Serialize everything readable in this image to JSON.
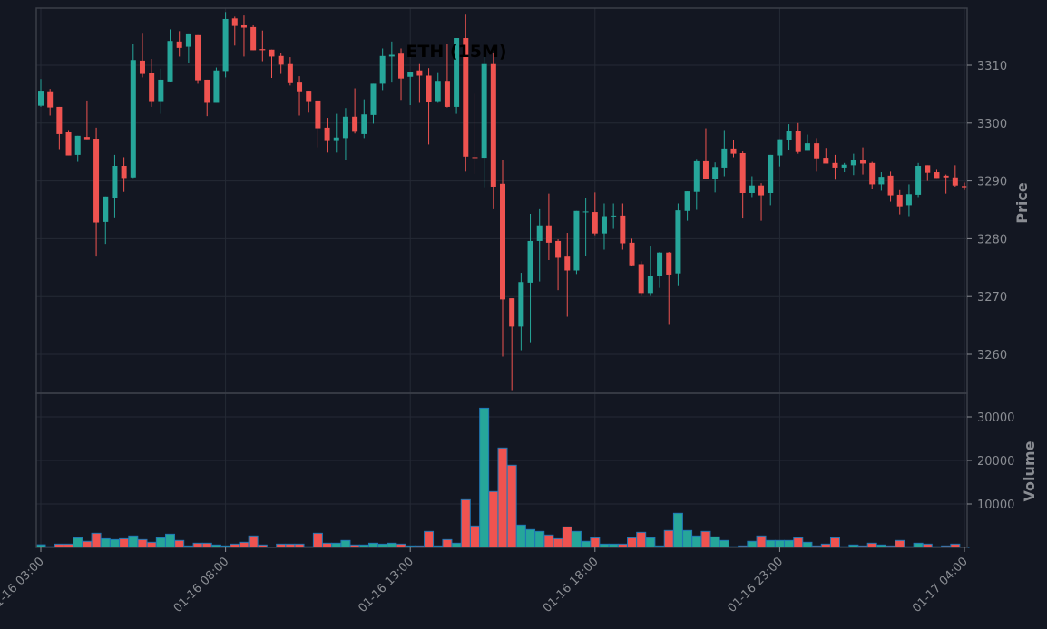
{
  "chart_data": {
    "type": "candlestick",
    "title": "ETH (15M)",
    "interval": "15M",
    "colors": {
      "up": "#26a69a",
      "down": "#ef5350",
      "volume_edge": "#1f77b4",
      "background": "#131722",
      "grid": "#252a35",
      "text": "#8a8d93"
    },
    "price_panel": {
      "ylabel": "Price",
      "ylim": [
        3252,
        3320
      ],
      "yticks": [
        3260,
        3270,
        3280,
        3290,
        3300,
        3310
      ]
    },
    "volume_panel": {
      "ylabel": "Volume",
      "ylim": [
        0,
        35000
      ],
      "yticks": [
        10000,
        20000,
        30000
      ]
    },
    "xticks": [
      {
        "index": 0,
        "label": "01-16 03:00"
      },
      {
        "index": 20,
        "label": "01-16 08:00"
      },
      {
        "index": 40,
        "label": "01-16 13:00"
      },
      {
        "index": 60,
        "label": "01-16 18:00"
      },
      {
        "index": 80,
        "label": "01-16 23:00"
      },
      {
        "index": 100,
        "label": "01-17 04:00"
      }
    ],
    "ohlc": [
      [
        3303.0,
        3307.6,
        3302.8,
        3305.6
      ],
      [
        3305.5,
        3305.9,
        3301.3,
        3302.7
      ],
      [
        3302.8,
        3302.8,
        3295.5,
        3298.1
      ],
      [
        3298.4,
        3298.8,
        3294.4,
        3294.4
      ],
      [
        3294.5,
        3297.8,
        3293.3,
        3297.8
      ],
      [
        3297.6,
        3303.9,
        3297.2,
        3297.2
      ],
      [
        3297.3,
        3299.2,
        3276.9,
        3282.8
      ],
      [
        3282.9,
        3287.3,
        3279.1,
        3287.3
      ],
      [
        3287.0,
        3294.5,
        3283.7,
        3292.6
      ],
      [
        3292.6,
        3294.1,
        3288.1,
        3290.5
      ],
      [
        3290.6,
        3313.6,
        3290.5,
        3310.9
      ],
      [
        3310.8,
        3315.6,
        3307.9,
        3308.5
      ],
      [
        3308.6,
        3311.1,
        3302.8,
        3303.8
      ],
      [
        3303.8,
        3309.4,
        3301.6,
        3307.5
      ],
      [
        3307.2,
        3316.2,
        3307.1,
        3314.2
      ],
      [
        3314.1,
        3315.9,
        3311.5,
        3313.0
      ],
      [
        3313.2,
        3315.5,
        3310.4,
        3315.5
      ],
      [
        3315.2,
        3315.2,
        3306.8,
        3307.4
      ],
      [
        3307.5,
        3307.5,
        3301.2,
        3303.5
      ],
      [
        3303.5,
        3309.6,
        3303.5,
        3309.1
      ],
      [
        3309.0,
        3319.2,
        3307.9,
        3318.0
      ],
      [
        3318.1,
        3318.4,
        3313.4,
        3316.8
      ],
      [
        3316.9,
        3318.6,
        3311.5,
        3316.5
      ],
      [
        3316.6,
        3316.9,
        3312.6,
        3312.6
      ],
      [
        3312.8,
        3316.0,
        3310.7,
        3312.6
      ],
      [
        3312.7,
        3312.7,
        3307.8,
        3311.5
      ],
      [
        3311.6,
        3312.1,
        3308.5,
        3310.1
      ],
      [
        3310.2,
        3311.4,
        3306.5,
        3306.9
      ],
      [
        3307.0,
        3308.1,
        3301.3,
        3305.5
      ],
      [
        3305.6,
        3305.6,
        3301.8,
        3303.8
      ],
      [
        3303.9,
        3303.9,
        3295.8,
        3299.1
      ],
      [
        3299.2,
        3300.9,
        3294.9,
        3296.9
      ],
      [
        3296.9,
        3301.6,
        3294.9,
        3297.5
      ],
      [
        3297.4,
        3302.6,
        3293.6,
        3301.1
      ],
      [
        3301.1,
        3306.0,
        3298.2,
        3298.5
      ],
      [
        3298.1,
        3304.1,
        3297.4,
        3301.5
      ],
      [
        3301.4,
        3306.8,
        3299.9,
        3306.8
      ],
      [
        3306.8,
        3312.9,
        3305.7,
        3311.6
      ],
      [
        3311.5,
        3314.1,
        3307.0,
        3311.8
      ],
      [
        3312.0,
        3312.9,
        3304.0,
        3307.7
      ],
      [
        3308.0,
        3308.9,
        3303.1,
        3308.9
      ],
      [
        3309.1,
        3310.2,
        3303.5,
        3308.2
      ],
      [
        3308.2,
        3309.5,
        3296.3,
        3303.6
      ],
      [
        3303.8,
        3308.8,
        3303.5,
        3307.3
      ],
      [
        3307.3,
        3313.7,
        3302.7,
        3302.8
      ],
      [
        3302.8,
        3314.7,
        3301.6,
        3314.7
      ],
      [
        3314.7,
        3318.9,
        3291.6,
        3294.2
      ],
      [
        3294.1,
        3305.1,
        3291.2,
        3294.0
      ],
      [
        3294.0,
        3311.9,
        3288.9,
        3310.2
      ],
      [
        3310.2,
        3312.1,
        3285.1,
        3289.0
      ],
      [
        3289.5,
        3293.6,
        3259.6,
        3269.5
      ],
      [
        3269.7,
        3269.7,
        3253.8,
        3264.8
      ],
      [
        3264.8,
        3274.1,
        3260.7,
        3272.5
      ],
      [
        3272.4,
        3284.3,
        3262.1,
        3279.6
      ],
      [
        3279.6,
        3285.1,
        3272.6,
        3282.3
      ],
      [
        3282.3,
        3287.8,
        3276.3,
        3279.3
      ],
      [
        3279.6,
        3279.9,
        3271.1,
        3276.7
      ],
      [
        3276.9,
        3281.0,
        3266.5,
        3274.5
      ],
      [
        3274.5,
        3284.8,
        3273.9,
        3284.8
      ],
      [
        3284.6,
        3287.0,
        3277.0,
        3284.7
      ],
      [
        3284.6,
        3288.0,
        3280.6,
        3280.9
      ],
      [
        3280.9,
        3286.1,
        3278.1,
        3283.9
      ],
      [
        3283.9,
        3286.1,
        3281.7,
        3284.0
      ],
      [
        3284.0,
        3286.1,
        3278.1,
        3279.2
      ],
      [
        3279.3,
        3280.0,
        3275.2,
        3275.4
      ],
      [
        3275.6,
        3276.1,
        3270.1,
        3270.6
      ],
      [
        3270.6,
        3278.8,
        3270.1,
        3273.6
      ],
      [
        3273.5,
        3277.7,
        3271.5,
        3277.6
      ],
      [
        3277.6,
        3277.7,
        3265.1,
        3273.8
      ],
      [
        3274.0,
        3286.1,
        3271.8,
        3284.9
      ],
      [
        3284.8,
        3288.2,
        3283.1,
        3288.2
      ],
      [
        3288.1,
        3293.8,
        3285.0,
        3293.4
      ],
      [
        3293.4,
        3299.1,
        3290.3,
        3290.3
      ],
      [
        3290.3,
        3293.2,
        3288.0,
        3292.4
      ],
      [
        3292.3,
        3298.8,
        3290.8,
        3295.6
      ],
      [
        3295.6,
        3297.1,
        3294.1,
        3294.7
      ],
      [
        3294.8,
        3295.1,
        3283.5,
        3287.9
      ],
      [
        3287.9,
        3290.8,
        3287.2,
        3289.2
      ],
      [
        3289.2,
        3289.6,
        3283.1,
        3287.5
      ],
      [
        3287.9,
        3294.5,
        3285.8,
        3294.5
      ],
      [
        3294.4,
        3297.2,
        3292.5,
        3297.2
      ],
      [
        3297.0,
        3299.8,
        3295.4,
        3298.6
      ],
      [
        3298.6,
        3300.0,
        3294.7,
        3295.0
      ],
      [
        3295.2,
        3298.0,
        3295.2,
        3296.5
      ],
      [
        3296.5,
        3297.4,
        3291.6,
        3293.9
      ],
      [
        3294.0,
        3295.7,
        3293.0,
        3293.0
      ],
      [
        3293.1,
        3294.5,
        3290.2,
        3292.3
      ],
      [
        3292.3,
        3293.1,
        3291.5,
        3292.8
      ],
      [
        3292.7,
        3294.7,
        3291.0,
        3293.7
      ],
      [
        3293.7,
        3295.8,
        3291.1,
        3293.0
      ],
      [
        3293.1,
        3293.3,
        3288.6,
        3289.4
      ],
      [
        3289.4,
        3291.5,
        3288.3,
        3290.7
      ],
      [
        3290.9,
        3291.6,
        3286.4,
        3287.5
      ],
      [
        3287.6,
        3288.4,
        3284.2,
        3285.6
      ],
      [
        3285.8,
        3289.4,
        3283.9,
        3287.7
      ],
      [
        3287.6,
        3293.1,
        3287.2,
        3292.6
      ],
      [
        3292.7,
        3292.7,
        3290.0,
        3291.4
      ],
      [
        3291.5,
        3291.9,
        3290.5,
        3290.5
      ],
      [
        3290.9,
        3291.1,
        3287.8,
        3290.6
      ],
      [
        3290.6,
        3292.7,
        3289.0,
        3289.2
      ],
      [
        3289.1,
        3289.7,
        3288.4,
        3288.9
      ]
    ],
    "volume": [
      600,
      150,
      760,
      760,
      2200,
      1400,
      3260,
      2000,
      1800,
      2000,
      2640,
      1800,
      1180,
      2200,
      3050,
      1600,
      350,
      970,
      970,
      560,
      350,
      760,
      1180,
      2640,
      560,
      100,
      760,
      760,
      760,
      150,
      3260,
      970,
      970,
      1600,
      560,
      560,
      970,
      760,
      970,
      760,
      350,
      350,
      3680,
      350,
      1800,
      970,
      10970,
      4930,
      32000,
      12850,
      22850,
      18890,
      5140,
      4100,
      3680,
      2850,
      2000,
      4720,
      3680,
      1400,
      2200,
      760,
      760,
      760,
      2200,
      3470,
      2200,
      350,
      3890,
      7850,
      3890,
      2640,
      3680,
      2430,
      1600,
      150,
      350,
      1400,
      2640,
      1600,
      1600,
      1600,
      2200,
      1180,
      350,
      760,
      2200,
      150,
      560,
      350,
      970,
      560,
      350,
      1600,
      150,
      970,
      760,
      150,
      350,
      760,
      100
    ]
  }
}
